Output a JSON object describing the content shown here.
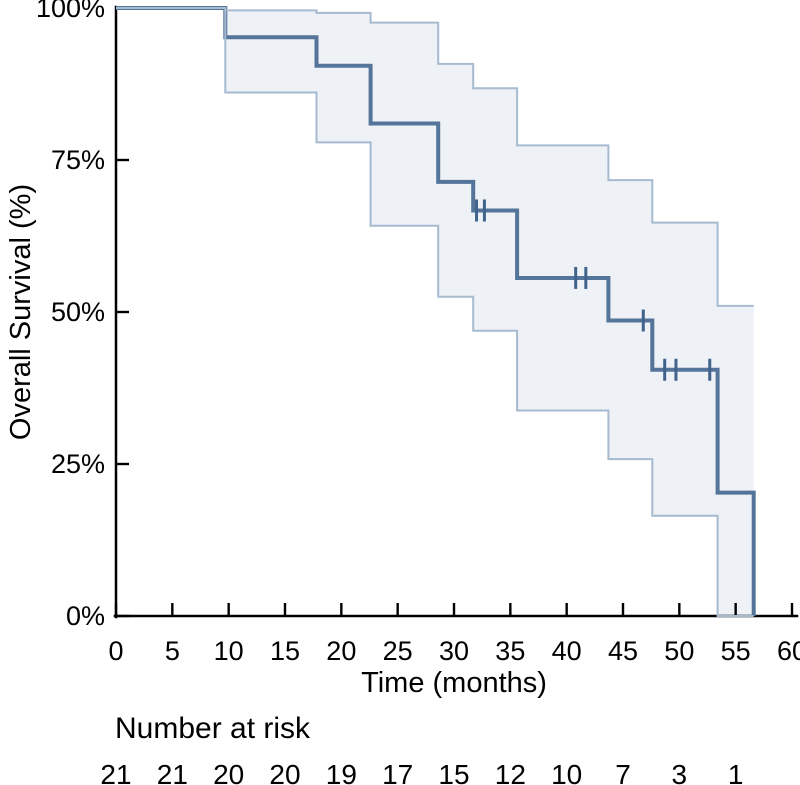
{
  "figure": {
    "background": "#ffffff"
  },
  "chart_data": {
    "type": "line",
    "subtype": "kaplan-meier-step",
    "title": "",
    "xlabel": "Time (months)",
    "ylabel": "Overall Survival (%)",
    "xlim": [
      0,
      60
    ],
    "ylim": [
      0,
      100
    ],
    "xticks": [
      0,
      5,
      10,
      15,
      20,
      25,
      30,
      35,
      40,
      45,
      50,
      55,
      60
    ],
    "xtick_labels": [
      "0",
      "5",
      "10",
      "15",
      "20",
      "25",
      "30",
      "35",
      "40",
      "45",
      "50",
      "55",
      "60"
    ],
    "yticks": [
      0,
      25,
      50,
      75,
      100
    ],
    "ytick_labels": [
      "0%",
      "25%",
      "50%",
      "75%",
      "100%"
    ],
    "grid": false,
    "legend": "none",
    "curve_end_time": 56.6,
    "series": [
      {
        "name": "Overall Survival",
        "style": "step",
        "points": [
          {
            "t": 0,
            "s": 100
          },
          {
            "t": 9.7,
            "s": 95.2
          },
          {
            "t": 17.8,
            "s": 90.5
          },
          {
            "t": 22.6,
            "s": 81.0
          },
          {
            "t": 28.6,
            "s": 71.4
          },
          {
            "t": 31.7,
            "s": 66.7
          },
          {
            "t": 35.6,
            "s": 55.6
          },
          {
            "t": 43.7,
            "s": 48.6
          },
          {
            "t": 47.6,
            "s": 40.5
          },
          {
            "t": 53.4,
            "s": 20.3
          },
          {
            "t": 56.6,
            "s": 0
          }
        ]
      }
    ],
    "ci_upper": [
      {
        "t": 0,
        "s": 100
      },
      {
        "t": 9.7,
        "s": 99.6
      },
      {
        "t": 17.8,
        "s": 99.2
      },
      {
        "t": 22.6,
        "s": 97.6
      },
      {
        "t": 28.6,
        "s": 90.8
      },
      {
        "t": 31.7,
        "s": 86.8
      },
      {
        "t": 35.6,
        "s": 77.4
      },
      {
        "t": 43.7,
        "s": 71.7
      },
      {
        "t": 47.6,
        "s": 64.7
      },
      {
        "t": 53.4,
        "s": 51.0
      }
    ],
    "ci_lower": [
      {
        "t": 0,
        "s": 100
      },
      {
        "t": 9.7,
        "s": 86.1
      },
      {
        "t": 17.8,
        "s": 77.9
      },
      {
        "t": 22.6,
        "s": 64.2
      },
      {
        "t": 28.6,
        "s": 52.5
      },
      {
        "t": 31.7,
        "s": 46.9
      },
      {
        "t": 35.6,
        "s": 33.8
      },
      {
        "t": 43.7,
        "s": 25.8
      },
      {
        "t": 47.6,
        "s": 16.5
      },
      {
        "t": 53.4,
        "s": 0
      }
    ],
    "censor_marks": [
      {
        "t": 32.0,
        "s": 66.7
      },
      {
        "t": 32.7,
        "s": 66.7
      },
      {
        "t": 40.8,
        "s": 55.6
      },
      {
        "t": 41.7,
        "s": 55.6
      },
      {
        "t": 46.8,
        "s": 48.6
      },
      {
        "t": 48.7,
        "s": 40.5
      },
      {
        "t": 49.7,
        "s": 40.5
      },
      {
        "t": 52.7,
        "s": 40.5
      }
    ],
    "risk_table": {
      "heading": "Number at risk",
      "times": [
        0,
        5,
        10,
        15,
        20,
        25,
        30,
        35,
        40,
        45,
        50,
        55
      ],
      "counts": [
        "21",
        "21",
        "20",
        "20",
        "19",
        "17",
        "15",
        "12",
        "10",
        "7",
        "3",
        "1"
      ]
    },
    "colors": {
      "curve": "#54749a",
      "censor": "#3f638b",
      "ci_border": "#a6bad0",
      "ci_fill": "#eef1f6",
      "axis": "#000000",
      "text": "#000000"
    }
  }
}
